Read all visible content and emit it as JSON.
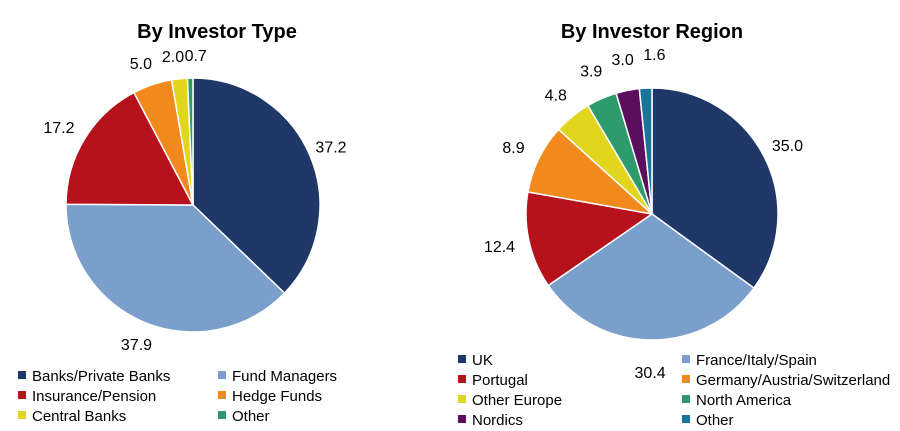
{
  "chart_data": [
    {
      "type": "pie",
      "title": "By Investor Type",
      "categories": [
        "Banks/Private Banks",
        "Fund Managers",
        "Insurance/Pension",
        "Hedge Funds",
        "Central Banks",
        "Other"
      ],
      "values": [
        37.2,
        37.9,
        17.2,
        5.0,
        2.0,
        0.7
      ],
      "labels": [
        "37.2",
        "37.9",
        "17.2",
        "5.0",
        "2.0",
        "0.7"
      ],
      "colors": [
        "#1f3868",
        "#7a9fcb",
        "#b5121b",
        "#f2891d",
        "#e2d51e",
        "#2f9a6c"
      ],
      "legend": "bottom",
      "start": "12 o'clock, clockwise"
    },
    {
      "type": "pie",
      "title": "By Investor Region",
      "categories": [
        "UK",
        "France/Italy/Spain",
        "Portugal",
        "Germany/Austria/Switzerland",
        "Other Europe",
        "North America",
        "Nordics",
        "Other"
      ],
      "values": [
        35.0,
        30.4,
        12.4,
        8.9,
        4.8,
        3.9,
        3.0,
        1.6
      ],
      "labels": [
        "35.0",
        "30.4",
        "12.4",
        "8.9",
        "4.8",
        "3.9",
        "3.0",
        "1.6"
      ],
      "colors": [
        "#1f3868",
        "#7a9fcb",
        "#b5121b",
        "#f2891d",
        "#e2d51e",
        "#2f9a6c",
        "#5c0e5e",
        "#17769a"
      ],
      "legend": "bottom",
      "start": "12 o'clock, clockwise"
    }
  ]
}
